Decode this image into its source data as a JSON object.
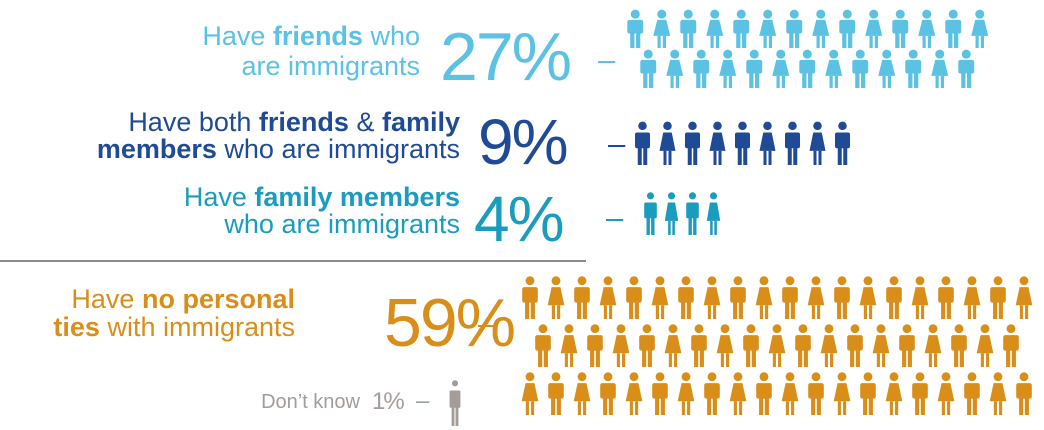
{
  "chart_data": {
    "type": "pictograph",
    "categories": [
      {
        "lines": [
          [
            {
              "text": "Have "
            },
            {
              "text": "friends",
              "bold": true
            },
            {
              "text": " who"
            }
          ],
          [
            {
              "text": "are immigrants"
            }
          ]
        ]
      },
      {
        "lines": [
          [
            {
              "text": "Have both "
            },
            {
              "text": "friends",
              "bold": true
            },
            {
              "text": " & "
            },
            {
              "text": "family",
              "bold": true
            }
          ],
          [
            {
              "text": "members",
              "bold": true
            },
            {
              "text": " who are immigrants"
            }
          ]
        ]
      },
      {
        "lines": [
          [
            {
              "text": "Have "
            },
            {
              "text": "family members",
              "bold": true
            }
          ],
          [
            {
              "text": "who are immigrants"
            }
          ]
        ]
      },
      {
        "lines": [
          [
            {
              "text": "Have "
            },
            {
              "text": "no personal",
              "bold": true
            }
          ],
          [
            {
              "text": "ties",
              "bold": true
            },
            {
              "text": " with immigrants"
            }
          ]
        ]
      },
      {
        "lines": [
          [
            {
              "text": "Don’t know"
            }
          ]
        ]
      }
    ],
    "values": [
      27,
      9,
      4,
      59,
      1
    ],
    "value_labels": [
      "27%",
      "9%",
      "4%",
      "59%",
      "1%"
    ],
    "colors": [
      "#5bc2e3",
      "#1f4a96",
      "#1a9cbf",
      "#d98e1a",
      "#a39c98"
    ],
    "connector": "–"
  }
}
